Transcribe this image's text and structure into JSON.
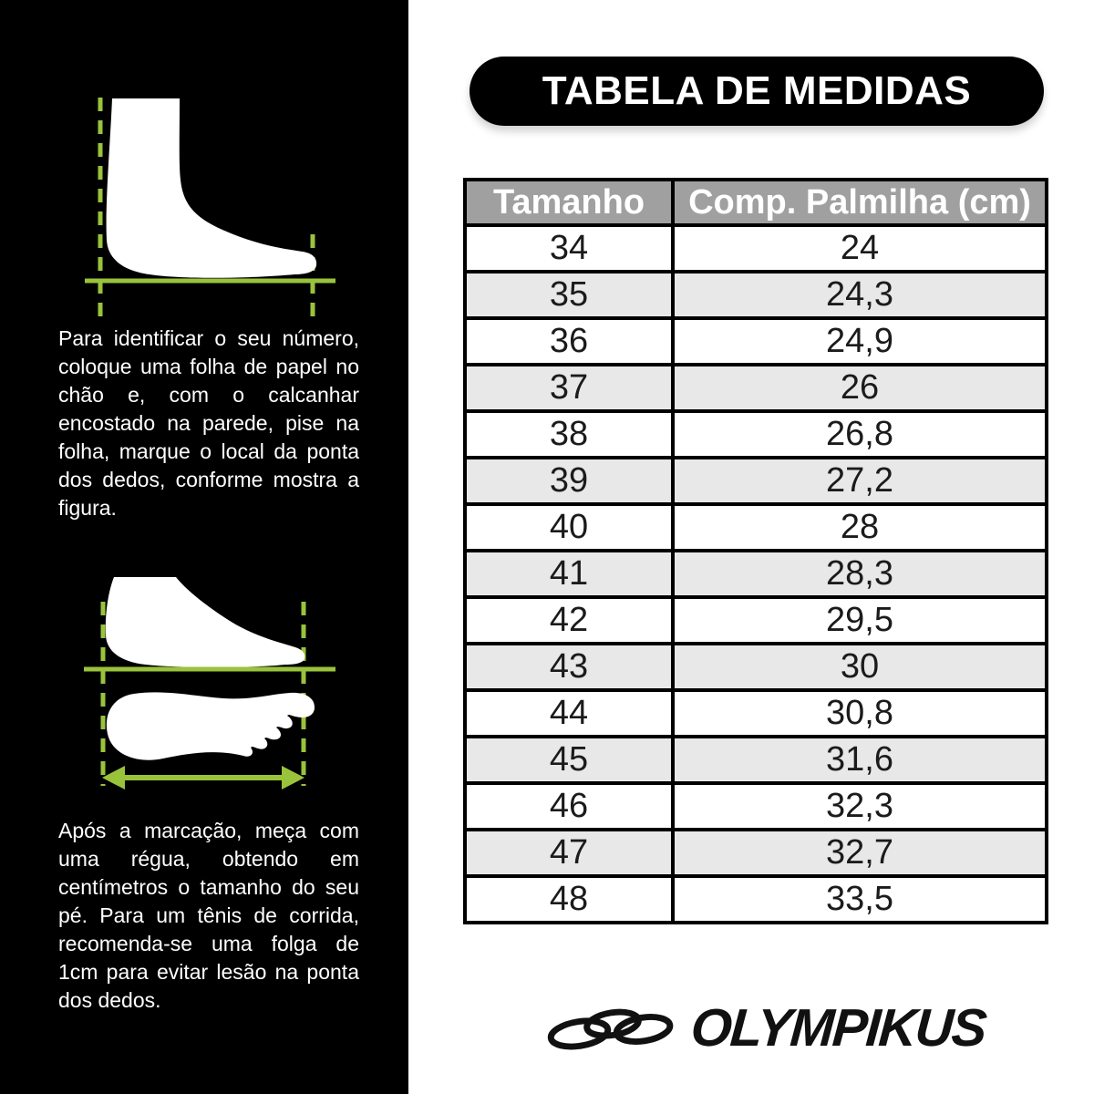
{
  "title": {
    "text": "TABELA DE MEDIDAS"
  },
  "instructions": {
    "step1": "Para identificar o seu número, coloque uma folha de papel no chão e, com o calcanhar encostado na parede, pise na folha, marque o local da ponta dos dedos, conforme mostra a figura.",
    "step2": "Após a marcação, meça com uma régua, obtendo em centímetros o tamanho do seu pé. Para um tênis de corrida, recomenda-se uma folga de 1cm para evitar lesão na ponta dos dedos."
  },
  "chart_data": {
    "type": "table",
    "title": "TABELA DE MEDIDAS",
    "columns": [
      "Tamanho",
      "Comp. Palmilha (cm)"
    ],
    "rows": [
      [
        "34",
        "24"
      ],
      [
        "35",
        "24,3"
      ],
      [
        "36",
        "24,9"
      ],
      [
        "37",
        "26"
      ],
      [
        "38",
        "26,8"
      ],
      [
        "39",
        "27,2"
      ],
      [
        "40",
        "28"
      ],
      [
        "41",
        "28,3"
      ],
      [
        "42",
        "29,5"
      ],
      [
        "43",
        "30"
      ],
      [
        "44",
        "30,8"
      ],
      [
        "45",
        "31,6"
      ],
      [
        "46",
        "32,3"
      ],
      [
        "47",
        "32,7"
      ],
      [
        "48",
        "33,5"
      ]
    ],
    "layout": {
      "header_background": "#a0a0a0",
      "alt_row_background": "#e8e8e8",
      "border_color": "#000000"
    }
  },
  "brand": {
    "name": "OLYMPIKUS"
  },
  "icons": {
    "figure1": "foot-side-view-height-guides-icon",
    "figure2": "foot-length-measure-arrow-icon",
    "logo_mark": "olympikus-rings-icon"
  },
  "colors": {
    "panel_black": "#000000",
    "accent_green": "#9ac33c",
    "header_gray": "#a0a0a0",
    "alt_row_gray": "#e8e8e8",
    "text_white": "#ffffff"
  }
}
